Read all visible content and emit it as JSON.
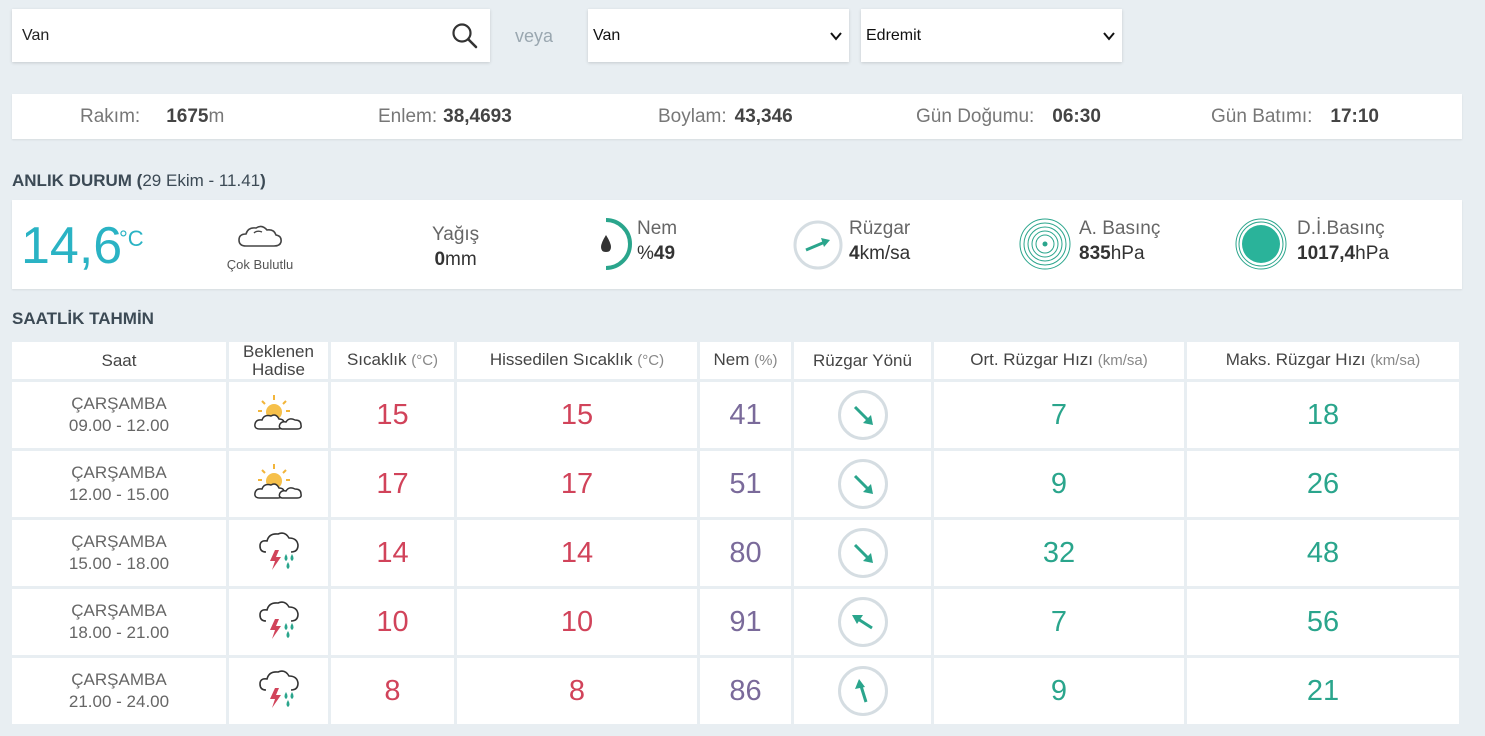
{
  "search": {
    "value": "Van",
    "separator": "veya"
  },
  "selects": {
    "province": "Van",
    "district": "Edremit"
  },
  "location_info": {
    "altitude_label": "Rakım:",
    "altitude_value": "1675",
    "altitude_unit": "m",
    "latitude_label": "Enlem:",
    "latitude_value": "38,4693",
    "longitude_label": "Boylam:",
    "longitude_value": "43,346",
    "sunrise_label": "Gün Doğumu:",
    "sunrise_value": "06:30",
    "sunset_label": "Gün Batımı:",
    "sunset_value": "17:10"
  },
  "current": {
    "title": "ANLIK DURUM",
    "time_open": "(",
    "time": "29 Ekim - 11.41",
    "time_close": ")",
    "temperature": "14,6",
    "temperature_unit": "°C",
    "condition": "Çok Bulutlu",
    "precip_label": "Yağış",
    "precip_value": "0",
    "precip_unit": "mm",
    "humidity_label": "Nem",
    "humidity_prefix": "%",
    "humidity_value": "49",
    "wind_label": "Rüzgar",
    "wind_value": "4",
    "wind_unit": "km/sa",
    "pressure_label": "A. Basınç",
    "pressure_value": "835",
    "pressure_unit": "hPa",
    "sea_pressure_label": "D.İ.Basınç",
    "sea_pressure_value": "1017,4",
    "sea_pressure_unit": "hPa"
  },
  "hourly": {
    "title": "SAATLİK TAHMİN",
    "headers": {
      "time": "Saat",
      "event_line1": "Beklenen",
      "event_line2": "Hadise",
      "temp": "Sıcaklık",
      "temp_unit": "(°C)",
      "feels": "Hissedilen Sıcaklık",
      "feels_unit": "(°C)",
      "humidity": "Nem",
      "humidity_unit": "(%)",
      "wind_dir": "Rüzgar Yönü",
      "avg_wind": "Ort. Rüzgar Hızı",
      "avg_wind_unit": "(km/sa)",
      "max_wind": "Maks. Rüzgar Hızı",
      "max_wind_unit": "(km/sa)"
    },
    "rows": [
      {
        "day": "ÇARŞAMBA",
        "range": "09.00 - 12.00",
        "icon": "partly-cloudy-icon",
        "temp": "15",
        "feels": "15",
        "humidity": "41",
        "wind_icon": "wind-arrow-southeast-icon",
        "avg": "7",
        "max": "18"
      },
      {
        "day": "ÇARŞAMBA",
        "range": "12.00 - 15.00",
        "icon": "partly-cloudy-icon",
        "temp": "17",
        "feels": "17",
        "humidity": "51",
        "wind_icon": "wind-arrow-southeast-icon",
        "avg": "9",
        "max": "26"
      },
      {
        "day": "ÇARŞAMBA",
        "range": "15.00 - 18.00",
        "icon": "thunderstorm-rain-icon",
        "temp": "14",
        "feels": "14",
        "humidity": "80",
        "wind_icon": "wind-arrow-southeast-icon",
        "avg": "32",
        "max": "48"
      },
      {
        "day": "ÇARŞAMBA",
        "range": "18.00 - 21.00",
        "icon": "thunderstorm-rain-icon",
        "temp": "10",
        "feels": "10",
        "humidity": "91",
        "wind_icon": "wind-arrow-northwest-icon",
        "avg": "7",
        "max": "56"
      },
      {
        "day": "ÇARŞAMBA",
        "range": "21.00 - 24.00",
        "icon": "thunderstorm-rain-icon",
        "temp": "8",
        "feels": "8",
        "humidity": "86",
        "wind_icon": "wind-arrow-north-icon",
        "avg": "9",
        "max": "21"
      }
    ]
  }
}
